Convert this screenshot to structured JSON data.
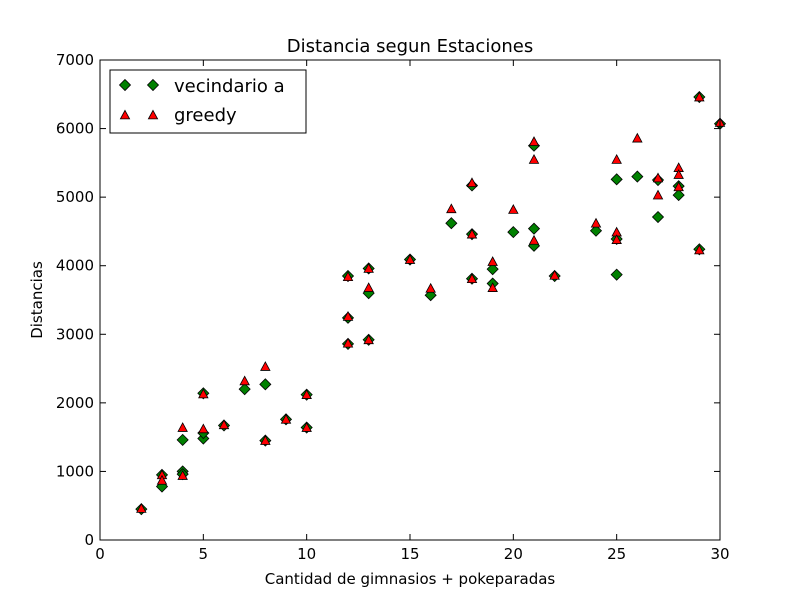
{
  "chart_data": {
    "type": "scatter",
    "title": "Distancia segun Estaciones",
    "xlabel": "Cantidad de gimnasios + pokeparadas",
    "ylabel": "Distancias",
    "xlim": [
      0,
      30
    ],
    "ylim": [
      0,
      7000
    ],
    "xticks": [
      0,
      5,
      10,
      15,
      20,
      25,
      30
    ],
    "yticks": [
      0,
      1000,
      2000,
      3000,
      4000,
      5000,
      6000,
      7000
    ],
    "grid": false,
    "legend": "top-left",
    "series": [
      {
        "name": "vecindario a",
        "marker": "diamond",
        "color": "#008000",
        "points": [
          [
            2,
            450
          ],
          [
            3,
            950
          ],
          [
            3,
            780
          ],
          [
            4,
            1000
          ],
          [
            4,
            960
          ],
          [
            4,
            1460
          ],
          [
            5,
            2140
          ],
          [
            5,
            1480
          ],
          [
            5,
            1560
          ],
          [
            6,
            1670
          ],
          [
            7,
            2200
          ],
          [
            8,
            2270
          ],
          [
            8,
            1450
          ],
          [
            9,
            1760
          ],
          [
            10,
            2120
          ],
          [
            10,
            1640
          ],
          [
            12,
            3850
          ],
          [
            12,
            3240
          ],
          [
            12,
            2860
          ],
          [
            13,
            3960
          ],
          [
            13,
            3600
          ],
          [
            13,
            2920
          ],
          [
            15,
            4090
          ],
          [
            16,
            3570
          ],
          [
            17,
            4620
          ],
          [
            18,
            5170
          ],
          [
            18,
            4460
          ],
          [
            18,
            3810
          ],
          [
            19,
            3950
          ],
          [
            19,
            3740
          ],
          [
            20,
            4490
          ],
          [
            21,
            5750
          ],
          [
            21,
            4540
          ],
          [
            21,
            4290
          ],
          [
            22,
            3850
          ],
          [
            24,
            4510
          ],
          [
            25,
            5260
          ],
          [
            25,
            4390
          ],
          [
            25,
            3870
          ],
          [
            26,
            5300
          ],
          [
            27,
            5250
          ],
          [
            27,
            4710
          ],
          [
            28,
            5160
          ],
          [
            28,
            5030
          ],
          [
            29,
            6460
          ],
          [
            29,
            4240
          ],
          [
            30,
            6070
          ]
        ]
      },
      {
        "name": "greedy",
        "marker": "triangle",
        "color": "#ff0000",
        "points": [
          [
            2,
            460
          ],
          [
            3,
            950
          ],
          [
            3,
            870
          ],
          [
            4,
            1640
          ],
          [
            4,
            940
          ],
          [
            5,
            2130
          ],
          [
            5,
            1620
          ],
          [
            6,
            1680
          ],
          [
            7,
            2320
          ],
          [
            8,
            2530
          ],
          [
            8,
            1450
          ],
          [
            9,
            1760
          ],
          [
            10,
            2120
          ],
          [
            10,
            1640
          ],
          [
            12,
            3840
          ],
          [
            12,
            3260
          ],
          [
            12,
            2870
          ],
          [
            13,
            3960
          ],
          [
            13,
            3680
          ],
          [
            13,
            2920
          ],
          [
            15,
            4090
          ],
          [
            16,
            3670
          ],
          [
            17,
            4830
          ],
          [
            18,
            5210
          ],
          [
            18,
            4460
          ],
          [
            18,
            3810
          ],
          [
            19,
            4060
          ],
          [
            19,
            3680
          ],
          [
            20,
            4820
          ],
          [
            21,
            5810
          ],
          [
            21,
            5550
          ],
          [
            21,
            4370
          ],
          [
            22,
            3860
          ],
          [
            24,
            4620
          ],
          [
            25,
            5550
          ],
          [
            25,
            4490
          ],
          [
            25,
            4380
          ],
          [
            26,
            5860
          ],
          [
            27,
            5280
          ],
          [
            27,
            5030
          ],
          [
            28,
            5430
          ],
          [
            28,
            5330
          ],
          [
            28,
            5150
          ],
          [
            29,
            6460
          ],
          [
            29,
            4230
          ],
          [
            30,
            6090
          ]
        ]
      }
    ]
  }
}
